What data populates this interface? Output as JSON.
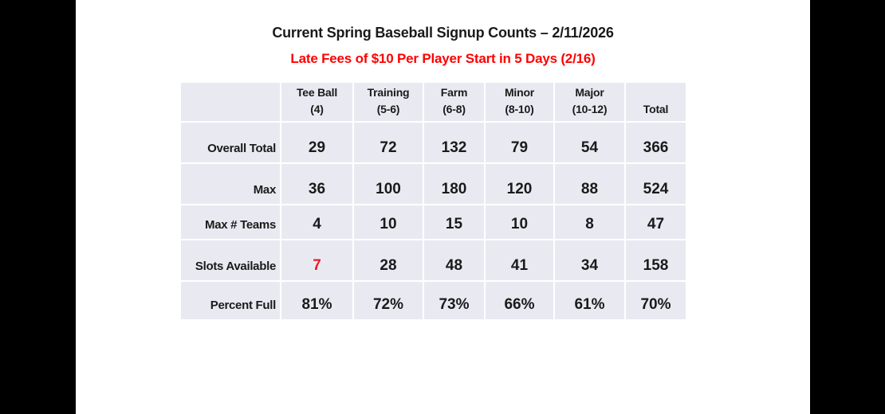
{
  "title": {
    "text": "Current Spring Baseball Signup Counts – 2/11/2026"
  },
  "subtitle": {
    "text": "Late Fees of $10 Per Player Start in 5 Days (2/16)"
  },
  "colors": {
    "title_text": "#1a1a1a",
    "subtitle_red": "#ff0000",
    "highlight_red": "#ed1c24",
    "cell_background": "#e9eaf1",
    "page_background": "#ffffff",
    "letterbox": "#000000"
  },
  "table": {
    "headers": [
      "Tee Ball\n(4)",
      "Training\n(5-6)",
      "Farm\n(6-8)",
      "Minor\n(8-10)",
      "Major\n(10-12)",
      "Total"
    ],
    "rows": [
      {
        "label": "Overall Total",
        "values": [
          "29",
          "72",
          "132",
          "79",
          "54",
          "366"
        ]
      },
      {
        "label": "Max",
        "values": [
          "36",
          "100",
          "180",
          "120",
          "88",
          "524"
        ]
      },
      {
        "label": "Max # Teams",
        "values": [
          "4",
          "10",
          "15",
          "10",
          "8",
          "47"
        ]
      },
      {
        "label": "Slots Available",
        "values": [
          "7",
          "28",
          "48",
          "41",
          "34",
          "158"
        ],
        "highlight": 0
      },
      {
        "label": "Percent Full",
        "values": [
          "81%",
          "72%",
          "73%",
          "66%",
          "61%",
          "70%"
        ]
      }
    ]
  },
  "chart_data": {
    "type": "table",
    "title": "Current Spring Baseball Signup Counts – 2/11/2026",
    "subtitle": "Late Fees of $10 Per Player Start in 5 Days (2/16)",
    "columns": [
      "Tee Ball (4)",
      "Training (5-6)",
      "Farm (6-8)",
      "Minor (8-10)",
      "Major (10-12)",
      "Total"
    ],
    "rows": [
      {
        "label": "Overall Total",
        "values": [
          29,
          72,
          132,
          79,
          54,
          366
        ]
      },
      {
        "label": "Max",
        "values": [
          36,
          100,
          180,
          120,
          88,
          524
        ]
      },
      {
        "label": "Max # Teams",
        "values": [
          4,
          10,
          15,
          10,
          8,
          47
        ]
      },
      {
        "label": "Slots Available",
        "values": [
          7,
          28,
          48,
          41,
          34,
          158
        ],
        "highlighted_cell": {
          "column": "Tee Ball (4)",
          "value": 7,
          "color": "red"
        }
      },
      {
        "label": "Percent Full",
        "values": [
          "81%",
          "72%",
          "73%",
          "66%",
          "61%",
          "70%"
        ]
      }
    ]
  }
}
